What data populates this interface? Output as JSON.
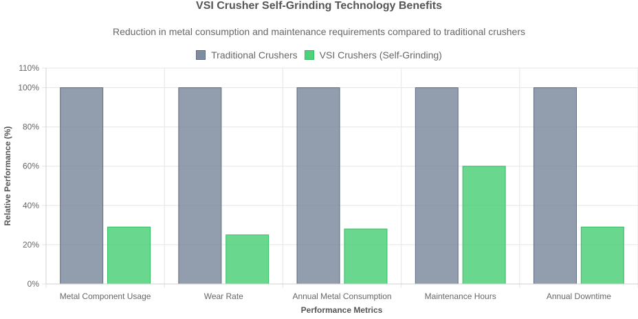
{
  "chart_data": {
    "type": "bar",
    "title": "VSI Crusher Self-Grinding Technology Benefits",
    "subtitle": "Reduction in metal consumption and maintenance requirements compared to traditional crushers",
    "xlabel": "Performance Metrics",
    "ylabel": "Relative Performance (%)",
    "categories": [
      "Metal Component Usage",
      "Wear Rate",
      "Annual Metal Consumption",
      "Maintenance Hours",
      "Annual Downtime"
    ],
    "series": [
      {
        "name": "Traditional Crushers",
        "values": [
          100,
          100,
          100,
          100,
          100
        ],
        "color": "#7f8c9f",
        "border": "#5d6b80"
      },
      {
        "name": "VSI Crushers (Self-Grinding)",
        "values": [
          29,
          25,
          28,
          60,
          29
        ],
        "color": "#4fd07a",
        "border": "#2fbf5f"
      }
    ],
    "ylim": [
      0,
      110
    ],
    "yticks": [
      0,
      20,
      40,
      60,
      80,
      100,
      110
    ],
    "ytick_suffix": "%",
    "grid": true,
    "legend_position": "top-center"
  }
}
